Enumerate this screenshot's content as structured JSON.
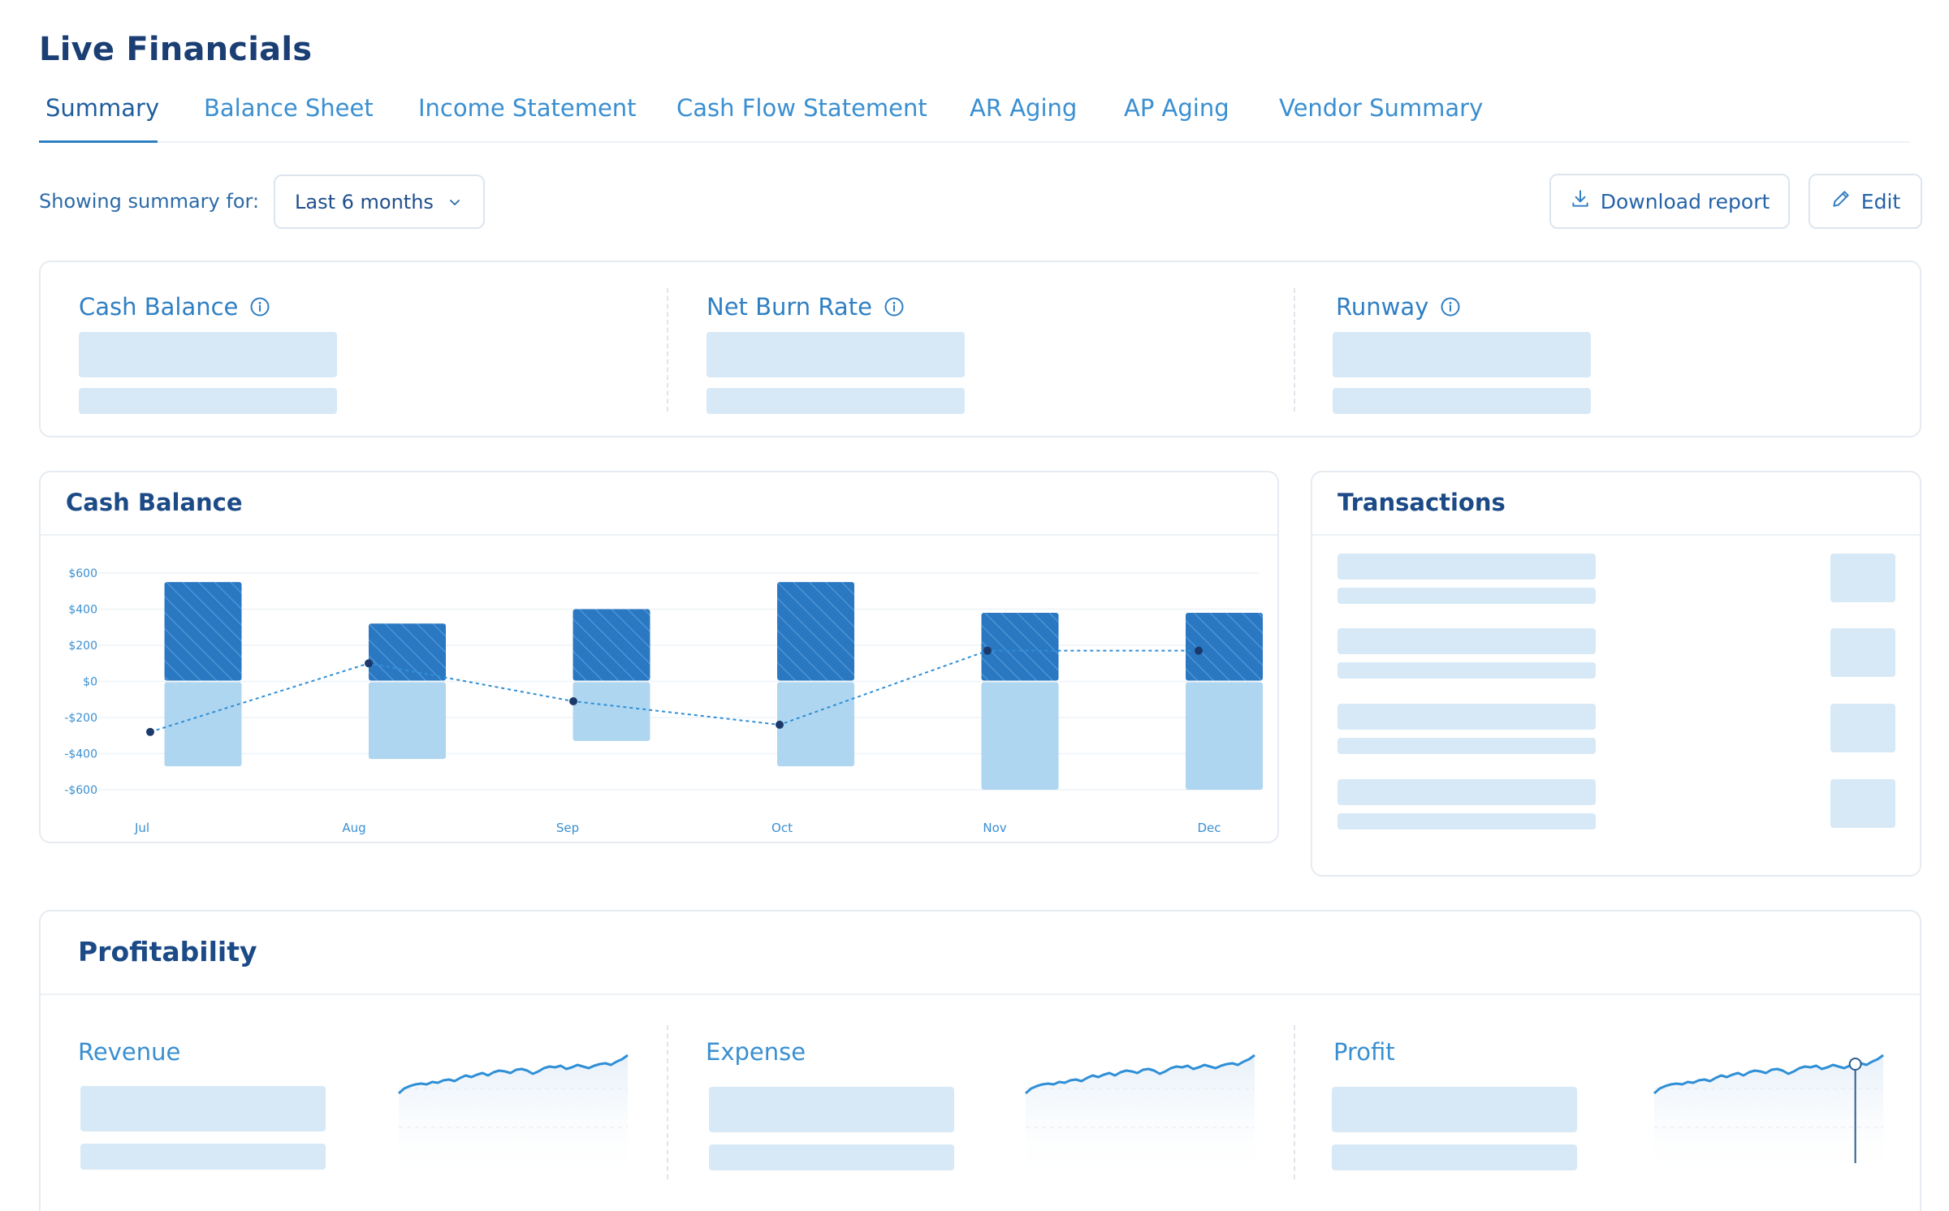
{
  "page": {
    "title": "Live Financials"
  },
  "tabs": [
    {
      "label": "Summary",
      "active": true
    },
    {
      "label": "Balance Sheet"
    },
    {
      "label": "Income Statement"
    },
    {
      "label": "Cash Flow Statement"
    },
    {
      "label": "AR Aging"
    },
    {
      "label": "AP Aging"
    },
    {
      "label": "Vendor Summary"
    }
  ],
  "filter": {
    "label": "Showing summary for:",
    "selected": "Last 6 months",
    "icon": "chevron-down-icon"
  },
  "actions": {
    "download": {
      "label": "Download report",
      "icon": "download-icon"
    },
    "edit": {
      "label": "Edit",
      "icon": "pencil-icon"
    }
  },
  "kpis": [
    {
      "title": "Cash Balance",
      "icon": "info-icon"
    },
    {
      "title": "Net Burn Rate",
      "icon": "info-icon"
    },
    {
      "title": "Runway",
      "icon": "info-icon"
    }
  ],
  "cash_chart": {
    "title": "Cash Balance"
  },
  "transactions": {
    "title": "Transactions"
  },
  "profitability": {
    "title": "Profitability",
    "metrics": [
      {
        "label": "Revenue"
      },
      {
        "label": "Expense"
      },
      {
        "label": "Profit"
      }
    ]
  },
  "colors": {
    "accent": "#2f7fc3",
    "bar_positive": "#2b78c2",
    "bar_negative": "#afd6f0",
    "skeleton": "#d7e9f6",
    "line": "#2f8fd6",
    "point": "#1b3a6b"
  },
  "chart_data": {
    "type": "bar",
    "categories": [
      "Jul",
      "Aug",
      "Sep",
      "Oct",
      "Nov",
      "Dec"
    ],
    "ylim": [
      -600,
      600
    ],
    "yticks": [
      "$600",
      "$400",
      "$200",
      "$0",
      "-$200",
      "-$400",
      "-$600"
    ],
    "ytick_values": [
      600,
      400,
      200,
      0,
      -200,
      -400,
      -600
    ],
    "series": [
      {
        "values": [
          550,
          320,
          400,
          550,
          380,
          380
        ]
      },
      {
        "values": [
          -470,
          -430,
          -330,
          -470,
          -600,
          -600
        ]
      },
      {
        "values": [
          -280,
          100,
          -110,
          -240,
          170,
          170
        ]
      }
    ]
  }
}
